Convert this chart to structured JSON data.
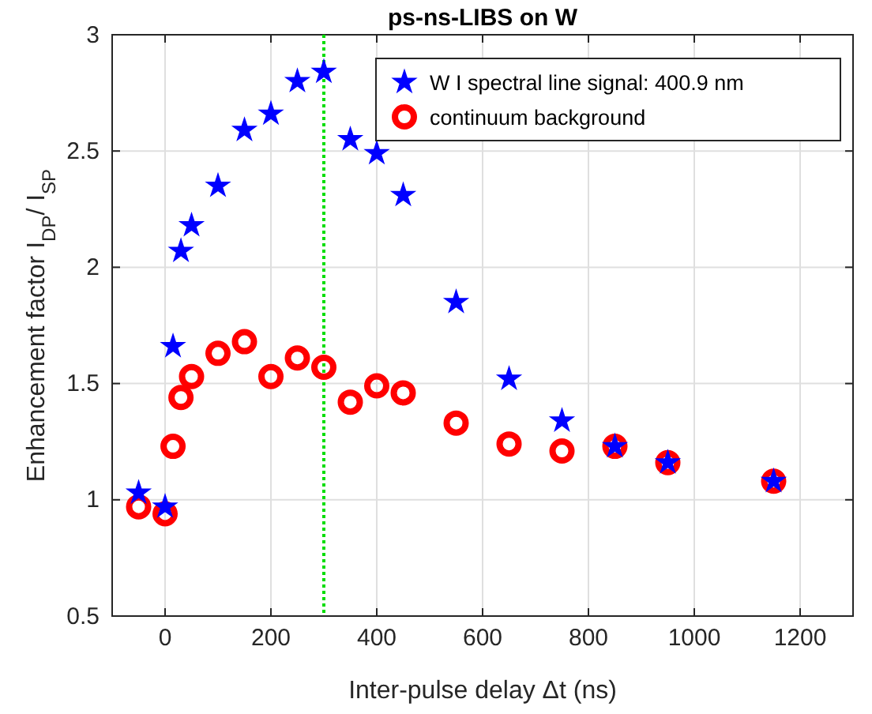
{
  "chart_data": {
    "type": "scatter",
    "title": "ps-ns-LIBS on W",
    "xlabel": "Inter-pulse delay Δt (ns)",
    "ylabel": "Enhancement factor I$_{DP}$/ I$_{SP}$",
    "xlim": [
      -100,
      1300
    ],
    "xticks": [
      0,
      200,
      400,
      600,
      800,
      1000,
      1200
    ],
    "ylim": [
      0.5,
      3
    ],
    "yticks": [
      0.5,
      1,
      1.5,
      2,
      2.5,
      3
    ],
    "grid": true,
    "legend": "top right",
    "x": [
      -50,
      0,
      15,
      30,
      50,
      100,
      150,
      200,
      250,
      300,
      350,
      400,
      450,
      550,
      650,
      750,
      850,
      950,
      1150
    ],
    "series": [
      {
        "name": "W I spectral line signal: 400.9 nm",
        "color": "#0000ff",
        "marker": "star",
        "values": [
          1.03,
          0.97,
          1.66,
          2.07,
          2.18,
          2.35,
          2.59,
          2.66,
          2.8,
          2.84,
          2.55,
          2.49,
          2.31,
          1.85,
          1.52,
          1.34,
          1.23,
          1.16,
          1.08
        ]
      },
      {
        "name": "continuum background",
        "color": "#ff0000",
        "marker": "circle",
        "values": [
          0.97,
          0.94,
          1.23,
          1.44,
          1.53,
          1.63,
          1.68,
          1.53,
          1.61,
          1.57,
          1.42,
          1.49,
          1.46,
          1.33,
          1.24,
          1.21,
          1.23,
          1.16,
          1.08
        ]
      }
    ],
    "ref_lines": [
      {
        "axis": "x",
        "value": 300,
        "color": "#00dd00",
        "line_style": "dotted"
      }
    ]
  }
}
